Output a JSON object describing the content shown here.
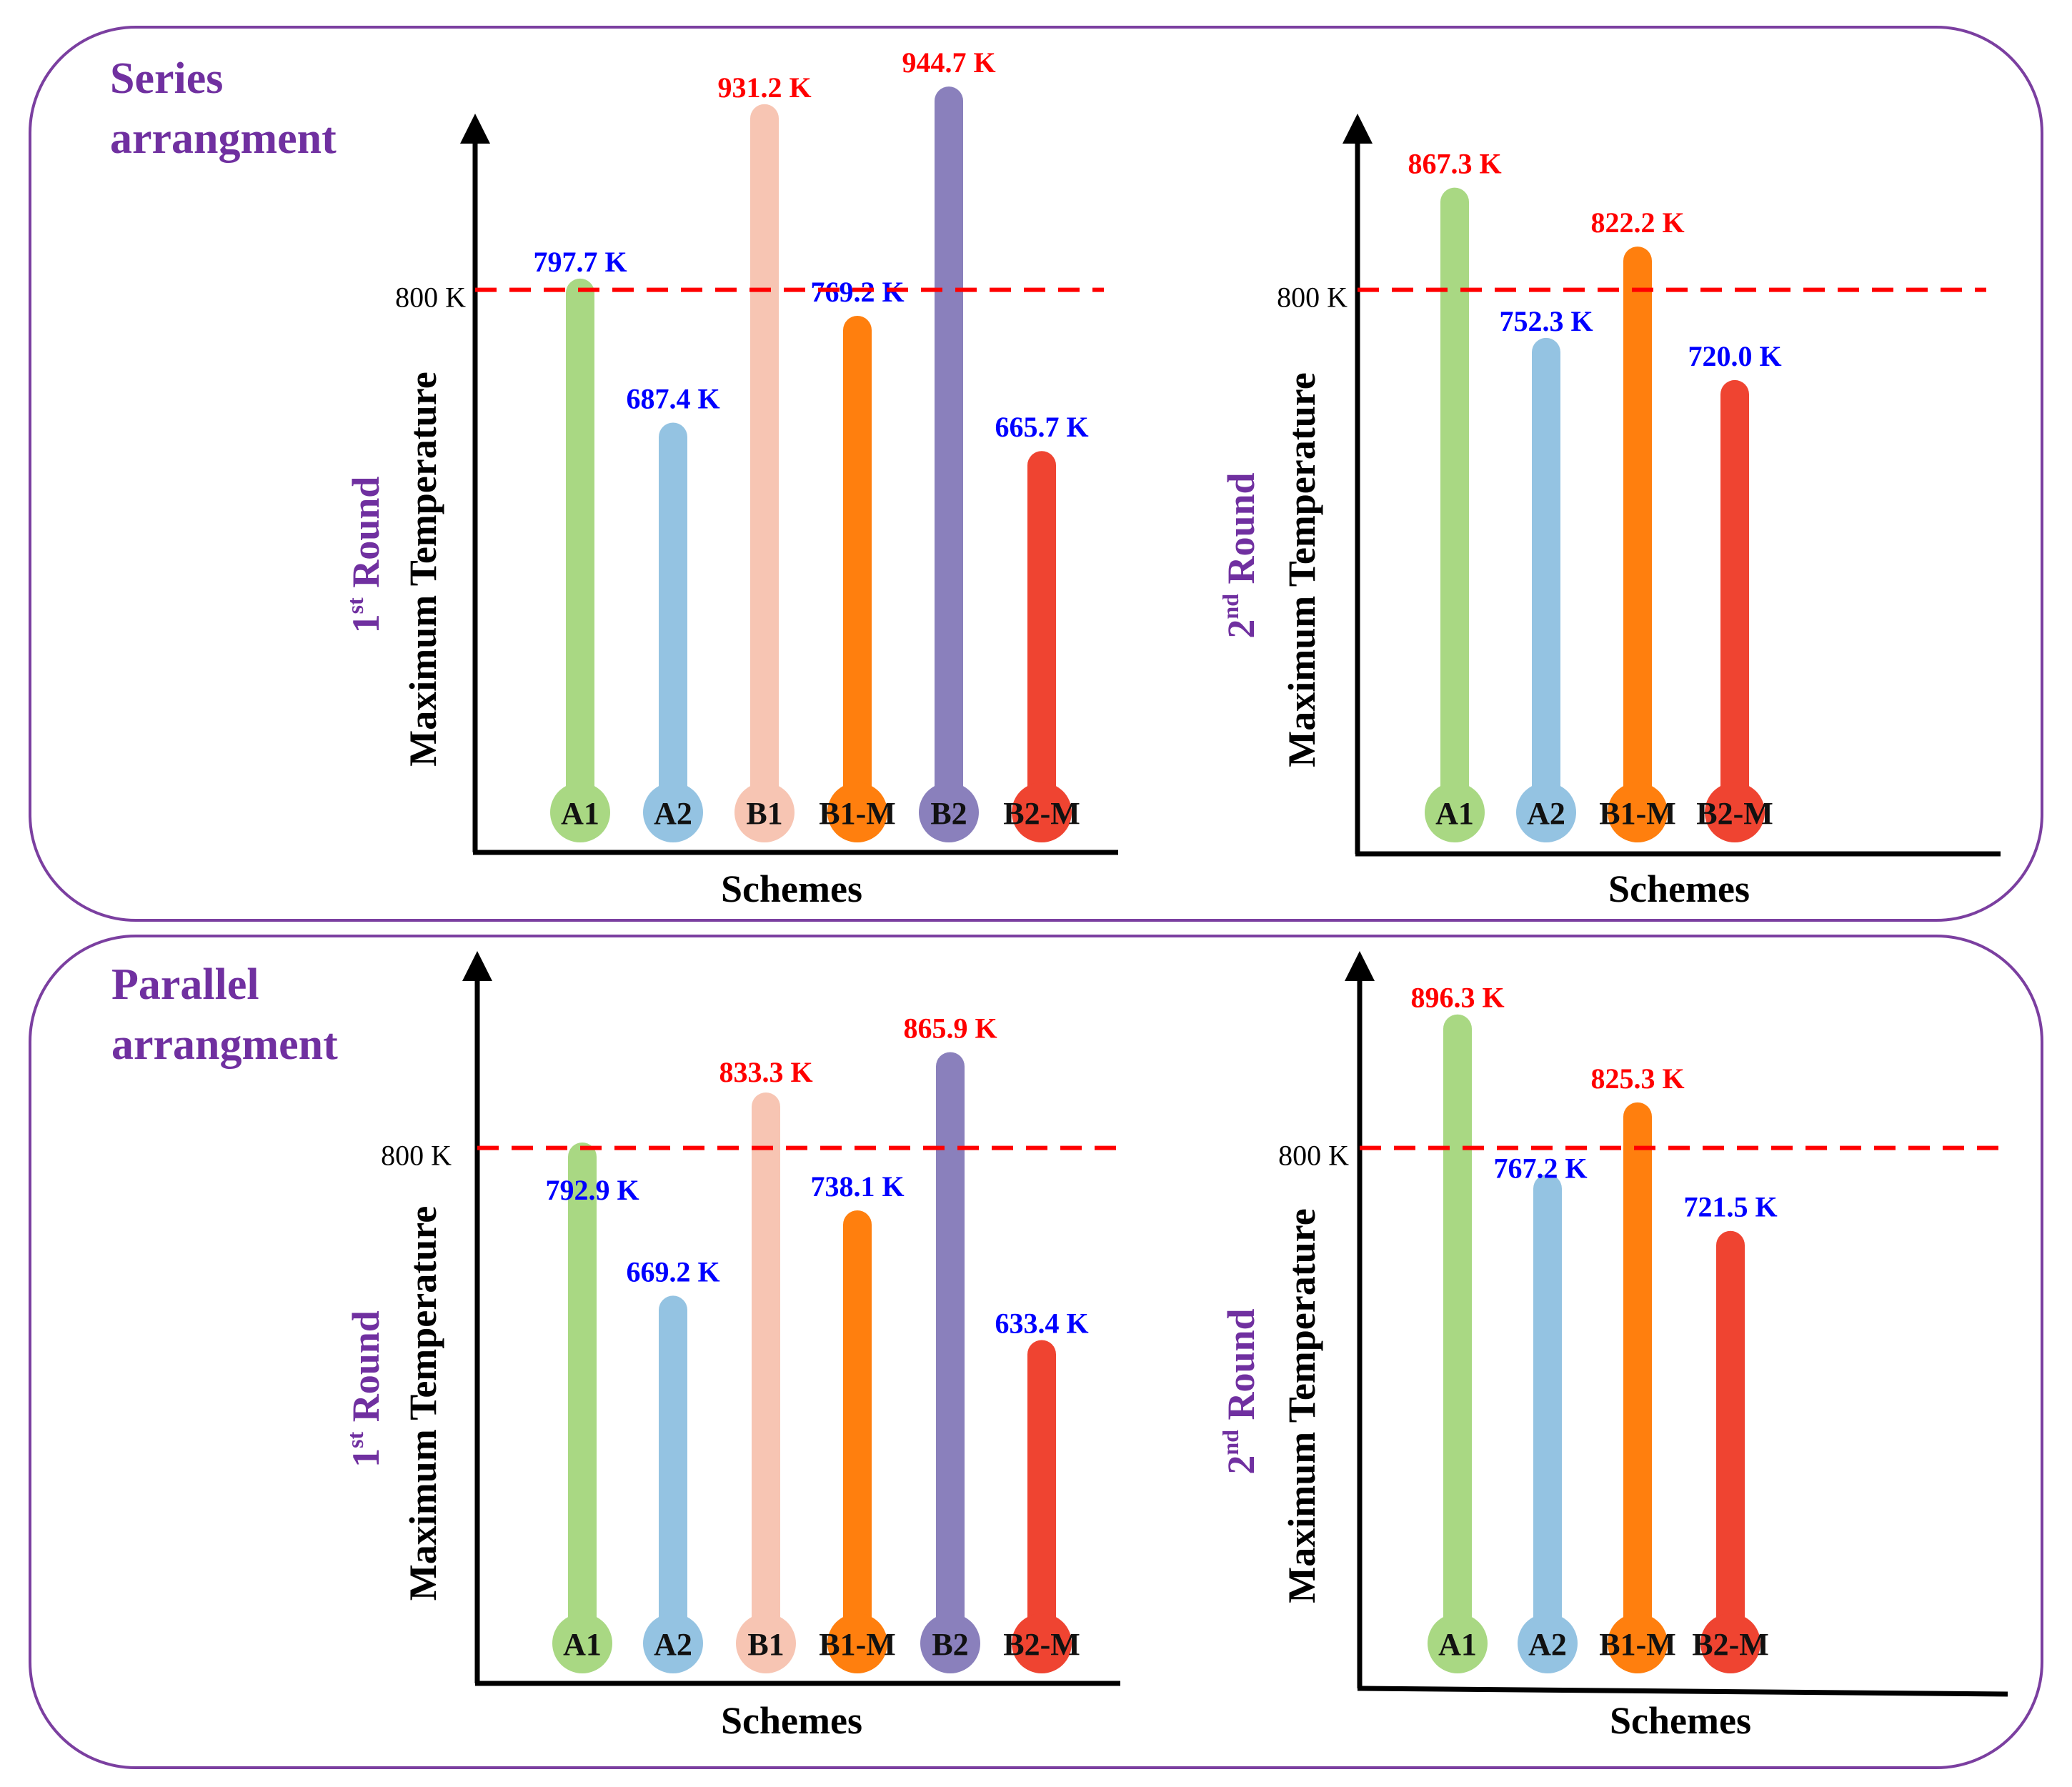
{
  "panels": [
    {
      "id": "series",
      "title_line1": "Series",
      "title_line2": "arrangment"
    },
    {
      "id": "parallel",
      "title_line1": "Parallel",
      "title_line2": "arrangment"
    }
  ],
  "colors": {
    "A1": "#a9d883",
    "A2": "#94c3e2",
    "B1": "#f7c5b3",
    "B1-M": "#ff7f0e",
    "B2": "#8a80bc",
    "B2-M": "#ef4431",
    "exceed_label": "#ff0000",
    "below_label": "#0000ff",
    "threshold_line": "#ff0000",
    "title": "#7030a0",
    "axis": "#000000"
  },
  "chart_data": [
    {
      "type": "bar",
      "panel": "series",
      "round_label": "1",
      "round_suffix": "st",
      "round_word": "Round",
      "title": "Series arrangment – 1st Round",
      "xlabel": "Schemes",
      "ylabel": "Maximum Temperature",
      "ylim": [
        400,
        1000
      ],
      "threshold": 800,
      "threshold_label": "800 K",
      "categories": [
        "A1",
        "A2",
        "B1",
        "B1-M",
        "B2",
        "B2-M"
      ],
      "values": [
        797.7,
        687.4,
        931.2,
        769.2,
        944.7,
        665.7
      ],
      "value_labels": [
        "797.7 K",
        "687.4 K",
        "931.2 K",
        "769.2 K",
        "944.7 K",
        "665.7 K"
      ]
    },
    {
      "type": "bar",
      "panel": "series",
      "round_label": "2",
      "round_suffix": "nd",
      "round_word": "Round",
      "title": "Series arrangment – 2nd Round",
      "xlabel": "Schemes",
      "ylabel": "Maximum Temperature",
      "ylim": [
        400,
        1000
      ],
      "threshold": 800,
      "threshold_label": "800 K",
      "categories": [
        "A1",
        "A2",
        "B1-M",
        "B2-M"
      ],
      "values": [
        867.3,
        752.3,
        822.2,
        720.0
      ],
      "value_labels": [
        "867.3 K",
        "752.3 K",
        "822.2 K",
        "720.0 K"
      ]
    },
    {
      "type": "bar",
      "panel": "parallel",
      "round_label": "1",
      "round_suffix": "st",
      "round_word": "Round",
      "title": "Parallel arrangment – 1st Round",
      "xlabel": "Schemes",
      "ylabel": "Maximum Temperature",
      "ylim": [
        400,
        1000
      ],
      "threshold": 800,
      "threshold_label": "800 K",
      "categories": [
        "A1",
        "A2",
        "B1",
        "B1-M",
        "B2",
        "B2-M"
      ],
      "values": [
        792.9,
        669.2,
        833.3,
        738.1,
        865.9,
        633.4
      ],
      "value_labels": [
        "792.9 K",
        "669.2 K",
        "833.3 K",
        "738.1 K",
        "865.9 K",
        "633.4 K"
      ]
    },
    {
      "type": "bar",
      "panel": "parallel",
      "round_label": "2",
      "round_suffix": "nd",
      "round_word": "Round",
      "title": "Parallel arrangment – 2nd Round",
      "xlabel": "Schemes",
      "ylabel": "Maximum Temperature",
      "ylim": [
        400,
        1000
      ],
      "threshold": 800,
      "threshold_label": "800 K",
      "categories": [
        "A1",
        "A2",
        "B1-M",
        "B2-M"
      ],
      "values": [
        896.3,
        767.2,
        825.3,
        721.5
      ],
      "value_labels": [
        "896.3 K",
        "767.2 K",
        "825.3 K",
        "721.5 K"
      ]
    }
  ]
}
